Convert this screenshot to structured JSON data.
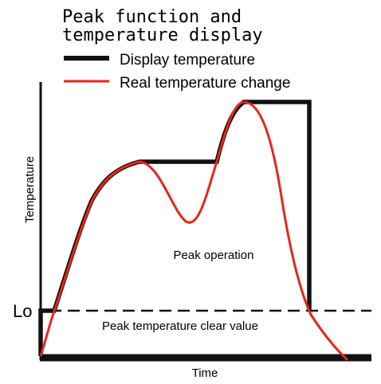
{
  "title": {
    "line1": "Peak function and",
    "line2": "temperature display"
  },
  "legend": {
    "display": {
      "label": "Display temperature",
      "color": "#111111"
    },
    "real": {
      "label": "Real temperature change",
      "color": "#e8261a"
    }
  },
  "axes": {
    "x_label": "Time",
    "y_label": "Temperature"
  },
  "lo_label": "Lo",
  "annotations": {
    "peak_operation": "Peak operation",
    "clear_value": "Peak temperature clear value"
  }
}
